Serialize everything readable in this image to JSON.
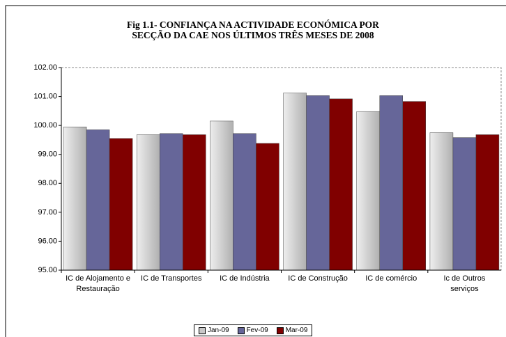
{
  "chart_data": {
    "type": "bar",
    "title": "Fig 1.1- CONFIANÇA  NA ACTIVIDADE ECONÓMICA  POR\nSECÇÃO DA CAE  NOS ÚLTIMOS TRÊS MESES DE  2008",
    "categories": [
      "IC de Alojamento e Restauração",
      "IC de Transportes",
      "IC de  Indústria",
      "IC de Construção",
      "IC de comércio",
      "Ic de Outros serviços"
    ],
    "series": [
      {
        "name": "Jan-09",
        "color": "#c8c8c8",
        "values": [
          99.95,
          99.68,
          100.15,
          101.12,
          100.48,
          99.75
        ]
      },
      {
        "name": "Fev-09",
        "color": "#666699",
        "values": [
          99.85,
          99.72,
          99.72,
          101.03,
          101.03,
          99.58
        ]
      },
      {
        "name": "Mar-09",
        "color": "#800000",
        "values": [
          99.55,
          99.68,
          99.38,
          100.92,
          100.83,
          99.68
        ]
      }
    ],
    "ylim": [
      95,
      102
    ],
    "yticks": [
      {
        "value": 95,
        "label": "95.00"
      },
      {
        "value": 96,
        "label": "96.00"
      },
      {
        "value": 97,
        "label": "97.00"
      },
      {
        "value": 98,
        "label": "98.00"
      },
      {
        "value": 99,
        "label": "99.00"
      },
      {
        "value": 100,
        "label": "100.00"
      },
      {
        "value": 101,
        "label": "101.00"
      },
      {
        "value": 102,
        "label": "102.00"
      }
    ],
    "legend": "bottom"
  }
}
